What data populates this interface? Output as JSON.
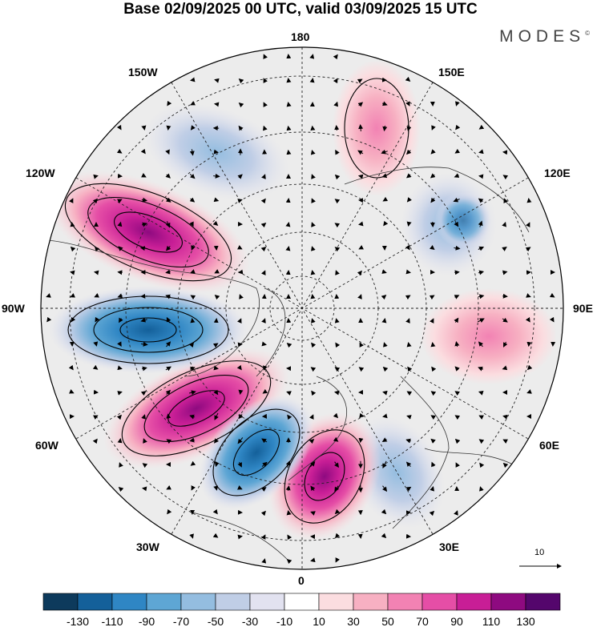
{
  "title": "Base 02/09/2025 00 UTC, valid 03/09/2025 15 UTC",
  "brand": "MODES",
  "brand_mark": "©",
  "longitude_labels": {
    "top": "180",
    "upper_left": "150W",
    "upper_right": "150E",
    "left_upper": "120W",
    "right_upper": "120E",
    "left": "90W",
    "right": "90E",
    "left_lower": "60W",
    "right_lower": "60E",
    "lower_left": "30W",
    "lower_right": "30E",
    "bottom": "0"
  },
  "reference_vector": {
    "label": "10",
    "icon": "arrow-right-icon"
  },
  "colorbar": {
    "colors": [
      "#0d3a5c",
      "#14609a",
      "#2f86c4",
      "#5ea6d4",
      "#94bde0",
      "#c0cee6",
      "#e2e2f0",
      "#ffffff",
      "#fbdde0",
      "#f7b0c2",
      "#f282b3",
      "#e54ea6",
      "#c81e96",
      "#8e0a80",
      "#54066c"
    ],
    "tick_labels": [
      "-130",
      "-110",
      "-90",
      "-70",
      "-50",
      "-30",
      "-10",
      "10",
      "30",
      "50",
      "70",
      "90",
      "110",
      "130"
    ]
  }
}
